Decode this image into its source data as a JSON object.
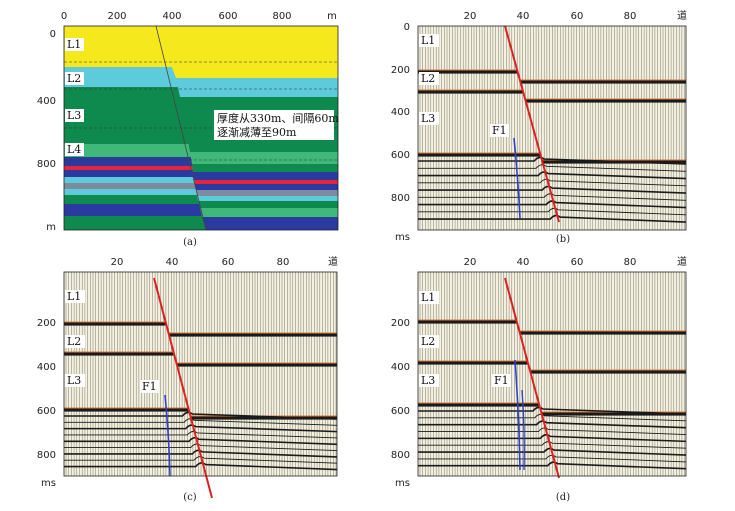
{
  "figure": {
    "panels": [
      {
        "id": "a",
        "caption": "(a)",
        "x_ticks": [
          "0",
          "200",
          "400",
          "600",
          "800"
        ],
        "x_unit": "m",
        "y_ticks": [
          "0",
          "400",
          "800"
        ],
        "y_unit": "m",
        "layer_labels": [
          "L1",
          "L2",
          "L3",
          "L4"
        ],
        "annotation": [
          "厚度从330m、间隔60m",
          "逐渐减薄至90m"
        ],
        "colors": {
          "yellow": "#f5e81c",
          "cyan": "#5ecbdc",
          "green": "#0e8a4f",
          "blue": "#2b3aa0",
          "red": "#e8243b",
          "gray": "#7d8aa0",
          "lightgreen": "#3fb87a"
        }
      },
      {
        "id": "b",
        "caption": "(b)",
        "x_ticks": [
          "20",
          "40",
          "60",
          "80"
        ],
        "x_unit": "道",
        "y_ticks": [
          "0",
          "200",
          "400",
          "600",
          "800"
        ],
        "y_unit": "ms",
        "layer_labels": [
          "L1",
          "L2",
          "L3"
        ],
        "fault_label": "F1"
      },
      {
        "id": "c",
        "caption": "(c)",
        "x_ticks": [
          "20",
          "40",
          "60",
          "80"
        ],
        "x_unit": "道",
        "y_ticks": [
          "200",
          "400",
          "600",
          "800"
        ],
        "y_unit": "ms",
        "layer_labels": [
          "L1",
          "L2",
          "L3"
        ],
        "fault_label": "F1"
      },
      {
        "id": "d",
        "caption": "(d)",
        "x_ticks": [
          "20",
          "40",
          "60",
          "80"
        ],
        "x_unit": "道",
        "y_ticks": [
          "200",
          "400",
          "600",
          "800"
        ],
        "y_unit": "ms",
        "layer_labels": [
          "L1",
          "L2",
          "L3"
        ],
        "fault_label": "F1"
      }
    ]
  }
}
